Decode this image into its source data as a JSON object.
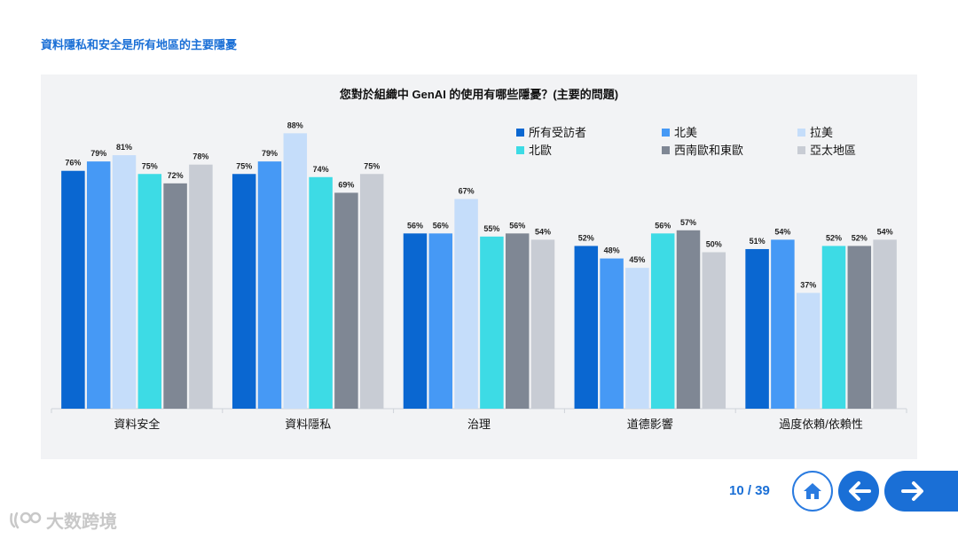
{
  "page": {
    "title": "資料隱私和安全是所有地區的主要隱憂"
  },
  "pager": {
    "text": "10 / 39"
  },
  "watermark": {
    "text": "大数跨境"
  },
  "colors": {
    "series": [
      "#0a67d1",
      "#4699f5",
      "#c5ddfa",
      "#3ddbe5",
      "#7f8794",
      "#c8ccd4"
    ],
    "panel_bg": "#f2f3f5",
    "accent": "#1a6fd6"
  },
  "icons": {
    "home": "home-icon",
    "prev": "arrow-left-icon",
    "next": "arrow-right-icon"
  },
  "chart_data": {
    "type": "bar",
    "title": "您對於組織中 GenAI 的使用有哪些隱憂？(主要的問題)",
    "categories": [
      "資料安全",
      "資料隱私",
      "治理",
      "道德影響",
      "過度依賴/依賴性"
    ],
    "series": [
      {
        "name": "所有受訪者",
        "values": [
          76,
          75,
          56,
          52,
          51
        ]
      },
      {
        "name": "北美",
        "values": [
          79,
          79,
          56,
          48,
          54
        ]
      },
      {
        "name": "拉美",
        "values": [
          81,
          88,
          67,
          45,
          37
        ]
      },
      {
        "name": "北歐",
        "values": [
          75,
          74,
          55,
          56,
          52
        ]
      },
      {
        "name": "西南歐和東歐",
        "values": [
          72,
          69,
          56,
          57,
          52
        ]
      },
      {
        "name": "亞太地區",
        "values": [
          78,
          75,
          54,
          50,
          54
        ]
      }
    ],
    "value_suffix": "%",
    "ylim": [
      0,
      100
    ],
    "grid": false,
    "legend": "top-right"
  }
}
